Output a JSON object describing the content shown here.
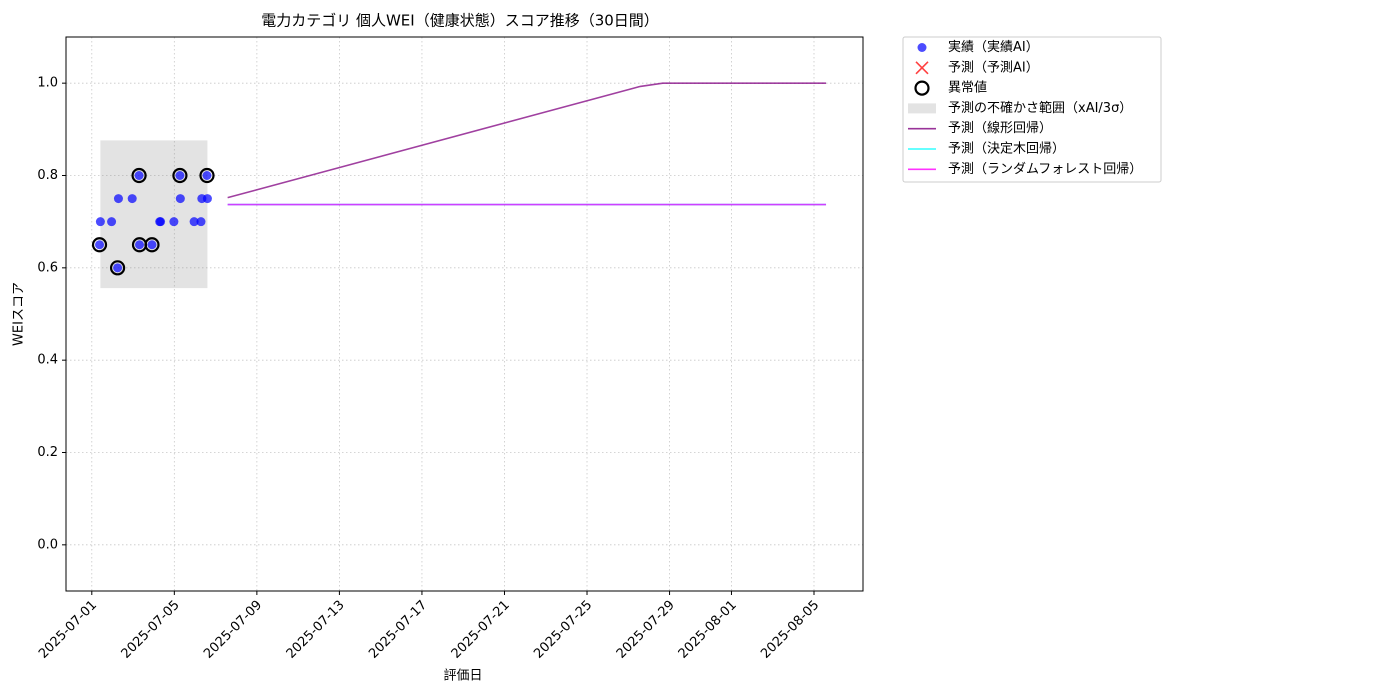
{
  "chart_data": {
    "type": "scatter",
    "title": "電力カテゴリ 個人WEI（健康状態）スコア推移（30日間）",
    "xlabel": "評価日",
    "ylabel": "WEIスコア",
    "xlim": [
      "2025-06-29T18:00",
      "2025-08-07T09:00"
    ],
    "ylim": [
      -0.1,
      1.1
    ],
    "xticks": [
      "2025-07-01",
      "2025-07-05",
      "2025-07-09",
      "2025-07-13",
      "2025-07-17",
      "2025-07-21",
      "2025-07-25",
      "2025-07-29",
      "2025-08-01",
      "2025-08-05"
    ],
    "yticks": [
      {
        "value": 0,
        "label": "0.0"
      },
      0.2,
      0.4,
      0.6,
      0.8,
      {
        "value": 1,
        "label": "1.0"
      }
    ],
    "grid": true,
    "legend": "outside right",
    "series": [
      {
        "name": "実績（実績AI）",
        "type": "scatter",
        "color": "#0000ff",
        "x": [
          "2025-07-01T09:00",
          "2025-07-01T10:00",
          "2025-07-01T23:00",
          "2025-07-02T06:00",
          "2025-07-02T07:00",
          "2025-07-02T23:00",
          "2025-07-03T07:00",
          "2025-07-03T07:30",
          "2025-07-03T22:00",
          "2025-07-04T07:00",
          "2025-07-04T08:00",
          "2025-07-04T23:30",
          "2025-07-05T06:30",
          "2025-07-05T07:00",
          "2025-07-05T23:00",
          "2025-07-06T07:00",
          "2025-07-06T08:00",
          "2025-07-06T14:00",
          "2025-07-06T14:30"
        ],
        "values": [
          0.65,
          0.7,
          0.7,
          0.6,
          0.75,
          0.75,
          0.8,
          0.65,
          0.65,
          0.7,
          0.7,
          0.7,
          0.8,
          0.75,
          0.7,
          0.7,
          0.75,
          0.8,
          0.75
        ]
      },
      {
        "name": "予測（予測AI）",
        "type": "cross",
        "color": "#ff0000",
        "x": [],
        "values": []
      },
      {
        "name": "異常値",
        "type": "ring",
        "color": "#000000",
        "x": [
          "2025-07-01T09:00",
          "2025-07-02T06:00",
          "2025-07-03T07:00",
          "2025-07-03T07:30",
          "2025-07-03T22:00",
          "2025-07-05T06:30",
          "2025-07-06T14:00"
        ],
        "values": [
          0.65,
          0.6,
          0.8,
          0.65,
          0.65,
          0.8,
          0.8
        ]
      },
      {
        "name": "予測の不確かさ範囲（xAI/3σ）",
        "type": "band",
        "color": "#808080",
        "x": [
          "2025-07-01T10:00",
          "2025-07-06T14:30"
        ],
        "lower": [
          0.556,
          0.556
        ],
        "upper": [
          0.876,
          0.876
        ]
      },
      {
        "name": "予測（線形回帰）",
        "type": "line",
        "color": "#800080",
        "x": [
          "2025-07-07T14:00",
          "2025-07-27T14:00",
          "2025-07-28T16:00",
          "2025-08-05T14:00"
        ],
        "values": [
          0.752,
          0.993,
          1.0,
          1.0
        ]
      },
      {
        "name": "予測（決定木回帰）",
        "type": "line",
        "color": "#00ffff",
        "x": [
          "2025-07-07T14:00",
          "2025-08-05T14:00"
        ],
        "values": [
          0.737,
          0.737
        ]
      },
      {
        "name": "予測（ランダムフォレスト回帰）",
        "type": "line",
        "color": "#ff00ff",
        "x": [
          "2025-07-07T14:00",
          "2025-08-05T14:00"
        ],
        "values": [
          0.737,
          0.737
        ]
      }
    ]
  }
}
